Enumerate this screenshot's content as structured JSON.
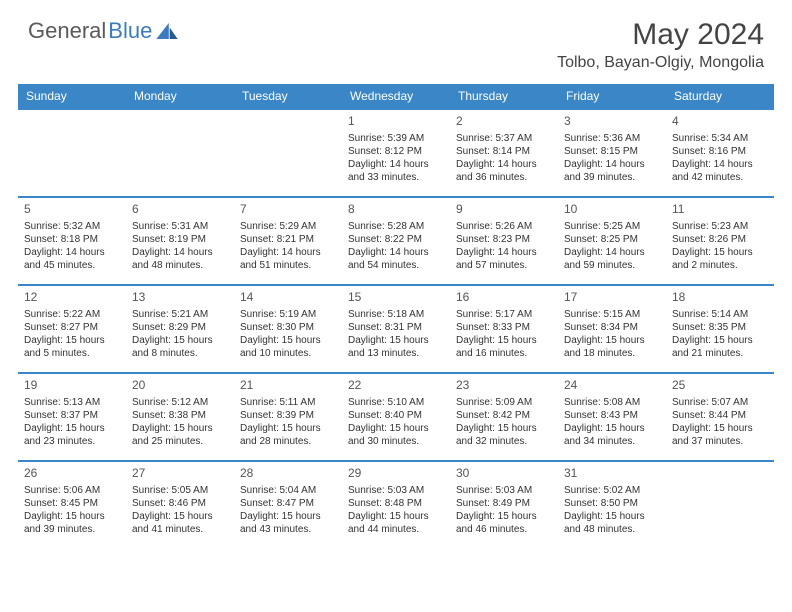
{
  "logo": {
    "word1": "General",
    "word2": "Blue"
  },
  "title": "May 2024",
  "location": "Tolbo, Bayan-Olgiy, Mongolia",
  "header_color": "#3b86c7",
  "header_text_color": "#ffffff",
  "divider_color": "#3b86c7",
  "text_color": "#333333",
  "background_color": "#ffffff",
  "day_headers": [
    "Sunday",
    "Monday",
    "Tuesday",
    "Wednesday",
    "Thursday",
    "Friday",
    "Saturday"
  ],
  "weeks": [
    [
      null,
      null,
      null,
      {
        "n": "1",
        "sr": "5:39 AM",
        "ss": "8:12 PM",
        "dl": "14 hours and 33 minutes."
      },
      {
        "n": "2",
        "sr": "5:37 AM",
        "ss": "8:14 PM",
        "dl": "14 hours and 36 minutes."
      },
      {
        "n": "3",
        "sr": "5:36 AM",
        "ss": "8:15 PM",
        "dl": "14 hours and 39 minutes."
      },
      {
        "n": "4",
        "sr": "5:34 AM",
        "ss": "8:16 PM",
        "dl": "14 hours and 42 minutes."
      }
    ],
    [
      {
        "n": "5",
        "sr": "5:32 AM",
        "ss": "8:18 PM",
        "dl": "14 hours and 45 minutes."
      },
      {
        "n": "6",
        "sr": "5:31 AM",
        "ss": "8:19 PM",
        "dl": "14 hours and 48 minutes."
      },
      {
        "n": "7",
        "sr": "5:29 AM",
        "ss": "8:21 PM",
        "dl": "14 hours and 51 minutes."
      },
      {
        "n": "8",
        "sr": "5:28 AM",
        "ss": "8:22 PM",
        "dl": "14 hours and 54 minutes."
      },
      {
        "n": "9",
        "sr": "5:26 AM",
        "ss": "8:23 PM",
        "dl": "14 hours and 57 minutes."
      },
      {
        "n": "10",
        "sr": "5:25 AM",
        "ss": "8:25 PM",
        "dl": "14 hours and 59 minutes."
      },
      {
        "n": "11",
        "sr": "5:23 AM",
        "ss": "8:26 PM",
        "dl": "15 hours and 2 minutes."
      }
    ],
    [
      {
        "n": "12",
        "sr": "5:22 AM",
        "ss": "8:27 PM",
        "dl": "15 hours and 5 minutes."
      },
      {
        "n": "13",
        "sr": "5:21 AM",
        "ss": "8:29 PM",
        "dl": "15 hours and 8 minutes."
      },
      {
        "n": "14",
        "sr": "5:19 AM",
        "ss": "8:30 PM",
        "dl": "15 hours and 10 minutes."
      },
      {
        "n": "15",
        "sr": "5:18 AM",
        "ss": "8:31 PM",
        "dl": "15 hours and 13 minutes."
      },
      {
        "n": "16",
        "sr": "5:17 AM",
        "ss": "8:33 PM",
        "dl": "15 hours and 16 minutes."
      },
      {
        "n": "17",
        "sr": "5:15 AM",
        "ss": "8:34 PM",
        "dl": "15 hours and 18 minutes."
      },
      {
        "n": "18",
        "sr": "5:14 AM",
        "ss": "8:35 PM",
        "dl": "15 hours and 21 minutes."
      }
    ],
    [
      {
        "n": "19",
        "sr": "5:13 AM",
        "ss": "8:37 PM",
        "dl": "15 hours and 23 minutes."
      },
      {
        "n": "20",
        "sr": "5:12 AM",
        "ss": "8:38 PM",
        "dl": "15 hours and 25 minutes."
      },
      {
        "n": "21",
        "sr": "5:11 AM",
        "ss": "8:39 PM",
        "dl": "15 hours and 28 minutes."
      },
      {
        "n": "22",
        "sr": "5:10 AM",
        "ss": "8:40 PM",
        "dl": "15 hours and 30 minutes."
      },
      {
        "n": "23",
        "sr": "5:09 AM",
        "ss": "8:42 PM",
        "dl": "15 hours and 32 minutes."
      },
      {
        "n": "24",
        "sr": "5:08 AM",
        "ss": "8:43 PM",
        "dl": "15 hours and 34 minutes."
      },
      {
        "n": "25",
        "sr": "5:07 AM",
        "ss": "8:44 PM",
        "dl": "15 hours and 37 minutes."
      }
    ],
    [
      {
        "n": "26",
        "sr": "5:06 AM",
        "ss": "8:45 PM",
        "dl": "15 hours and 39 minutes."
      },
      {
        "n": "27",
        "sr": "5:05 AM",
        "ss": "8:46 PM",
        "dl": "15 hours and 41 minutes."
      },
      {
        "n": "28",
        "sr": "5:04 AM",
        "ss": "8:47 PM",
        "dl": "15 hours and 43 minutes."
      },
      {
        "n": "29",
        "sr": "5:03 AM",
        "ss": "8:48 PM",
        "dl": "15 hours and 44 minutes."
      },
      {
        "n": "30",
        "sr": "5:03 AM",
        "ss": "8:49 PM",
        "dl": "15 hours and 46 minutes."
      },
      {
        "n": "31",
        "sr": "5:02 AM",
        "ss": "8:50 PM",
        "dl": "15 hours and 48 minutes."
      },
      null
    ]
  ],
  "labels": {
    "sunrise_prefix": "Sunrise: ",
    "sunset_prefix": "Sunset: ",
    "daylight_prefix": "Daylight: "
  }
}
